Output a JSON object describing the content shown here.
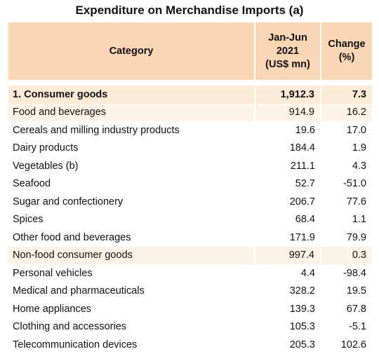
{
  "title": "Expenditure on Merchandise Imports (a)",
  "header": {
    "category": "Category",
    "period_lines": [
      "Jan-Jun",
      "2021",
      "(US$ mn)"
    ],
    "change_lines": [
      "Change",
      "(%)"
    ]
  },
  "rows": [
    {
      "label": "1.  Consumer goods",
      "value": "1,912.3",
      "change": "7.3"
    },
    {
      "label": "Food and beverages",
      "value": "914.9",
      "change": "16.2"
    },
    {
      "label": "Cereals and milling industry products",
      "value": "19.6",
      "change": "17.0"
    },
    {
      "label": "Dairy products",
      "value": "184.4",
      "change": "1.9"
    },
    {
      "label": "Vegetables (b)",
      "value": "211.1",
      "change": "4.3"
    },
    {
      "label": "Seafood",
      "value": "52.7",
      "change": "-51.0"
    },
    {
      "label": "Sugar and confectionery",
      "value": "206.7",
      "change": "77.6"
    },
    {
      "label": "Spices",
      "value": "68.4",
      "change": "1.1"
    },
    {
      "label": "Other food and beverages",
      "value": "171.9",
      "change": "79.9"
    },
    {
      "label": "Non-food consumer goods",
      "value": "997.4",
      "change": "0.3"
    },
    {
      "label": "Personal vehicles",
      "value": "4.4",
      "change": "-98.4"
    },
    {
      "label": "Medical and pharmaceuticals",
      "value": "328.2",
      "change": "19.5"
    },
    {
      "label": "Home appliances",
      "value": "139.3",
      "change": "67.8"
    },
    {
      "label": "Clothing and accessories",
      "value": "105.3",
      "change": "-5.1"
    },
    {
      "label": "Telecommunication devices",
      "value": "205.3",
      "change": "102.6"
    }
  ]
}
